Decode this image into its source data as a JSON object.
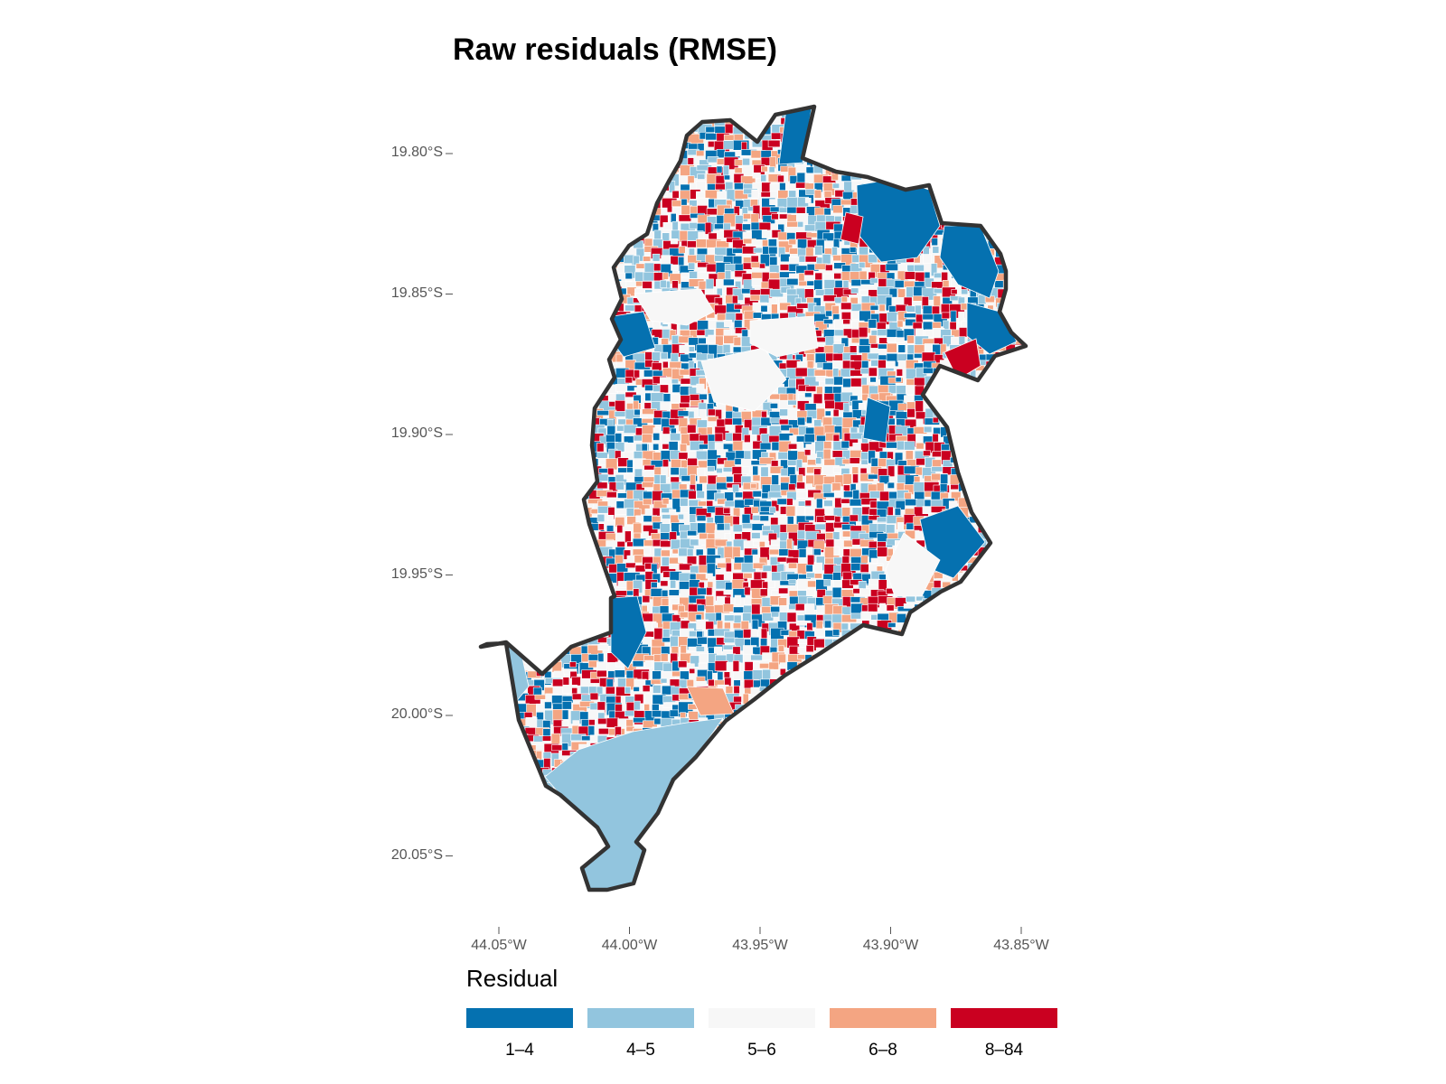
{
  "title": "Raw residuals (RMSE)",
  "y_axis": {
    "ticks": [
      {
        "value": -19.8,
        "label": "19.80°S"
      },
      {
        "value": -19.85,
        "label": "19.85°S"
      },
      {
        "value": -19.9,
        "label": "19.90°S"
      },
      {
        "value": -19.95,
        "label": "19.95°S"
      },
      {
        "value": -20.0,
        "label": "20.00°S"
      },
      {
        "value": -20.05,
        "label": "20.05°S"
      }
    ]
  },
  "x_axis": {
    "ticks": [
      {
        "value": -44.05,
        "label": "44.05°W"
      },
      {
        "value": -44.0,
        "label": "44.00°W"
      },
      {
        "value": -43.95,
        "label": "43.95°W"
      },
      {
        "value": -43.9,
        "label": "43.90°W"
      },
      {
        "value": -43.85,
        "label": "43.85°W"
      }
    ]
  },
  "legend": {
    "title": "Residual",
    "position": "bottom",
    "classes": [
      {
        "label": "1–4",
        "color": "#0571b0"
      },
      {
        "label": "4–5",
        "color": "#92c5de"
      },
      {
        "label": "5–6",
        "color": "#f7f7f7"
      },
      {
        "label": "6–8",
        "color": "#f4a582"
      },
      {
        "label": "8–84",
        "color": "#ca0020"
      }
    ]
  },
  "boundary_color": "#333333"
}
